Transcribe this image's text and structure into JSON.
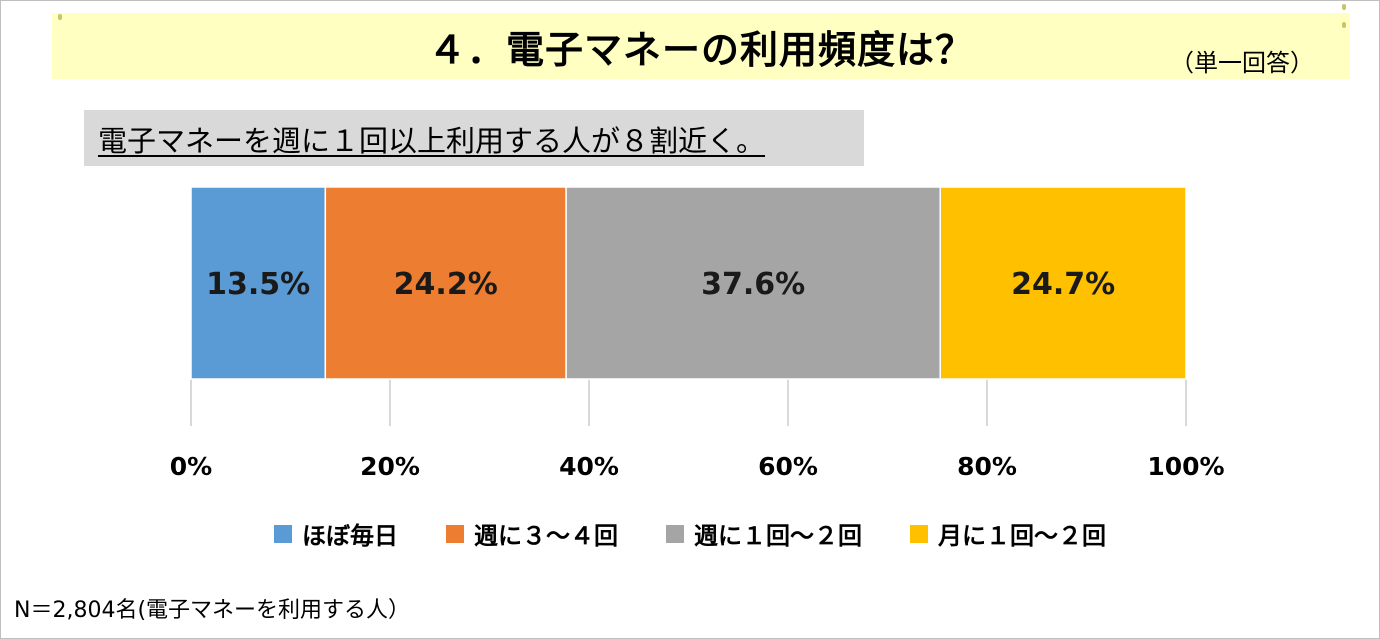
{
  "header": {
    "title": "４．電子マネーの利用頻度は？",
    "note": "（単一回答）"
  },
  "subtitle": "電子マネーを週に１回以上利用する人が８割近く。",
  "footnote": "N＝2,804名(電子マネーを利用する人）",
  "chart_data": {
    "type": "bar",
    "orientation": "horizontal-stacked-100",
    "title": "",
    "xlabel": "",
    "ylabel": "",
    "xlim": [
      0,
      100
    ],
    "x_ticks": [
      "0%",
      "20%",
      "40%",
      "60%",
      "80%",
      "100%"
    ],
    "legend_position": "bottom",
    "series": [
      {
        "name": "ほぼ毎日",
        "values": [
          13.5
        ],
        "label": "13.5%",
        "color": "#5b9bd5"
      },
      {
        "name": "週に３～４回",
        "values": [
          24.2
        ],
        "label": "24.2%",
        "color": "#ed7d31"
      },
      {
        "name": "週に１回～２回",
        "values": [
          37.6
        ],
        "label": "37.6%",
        "color": "#a5a5a5"
      },
      {
        "name": "月に１回～２回",
        "values": [
          24.7
        ],
        "label": "24.7%",
        "color": "#ffc000"
      }
    ]
  }
}
